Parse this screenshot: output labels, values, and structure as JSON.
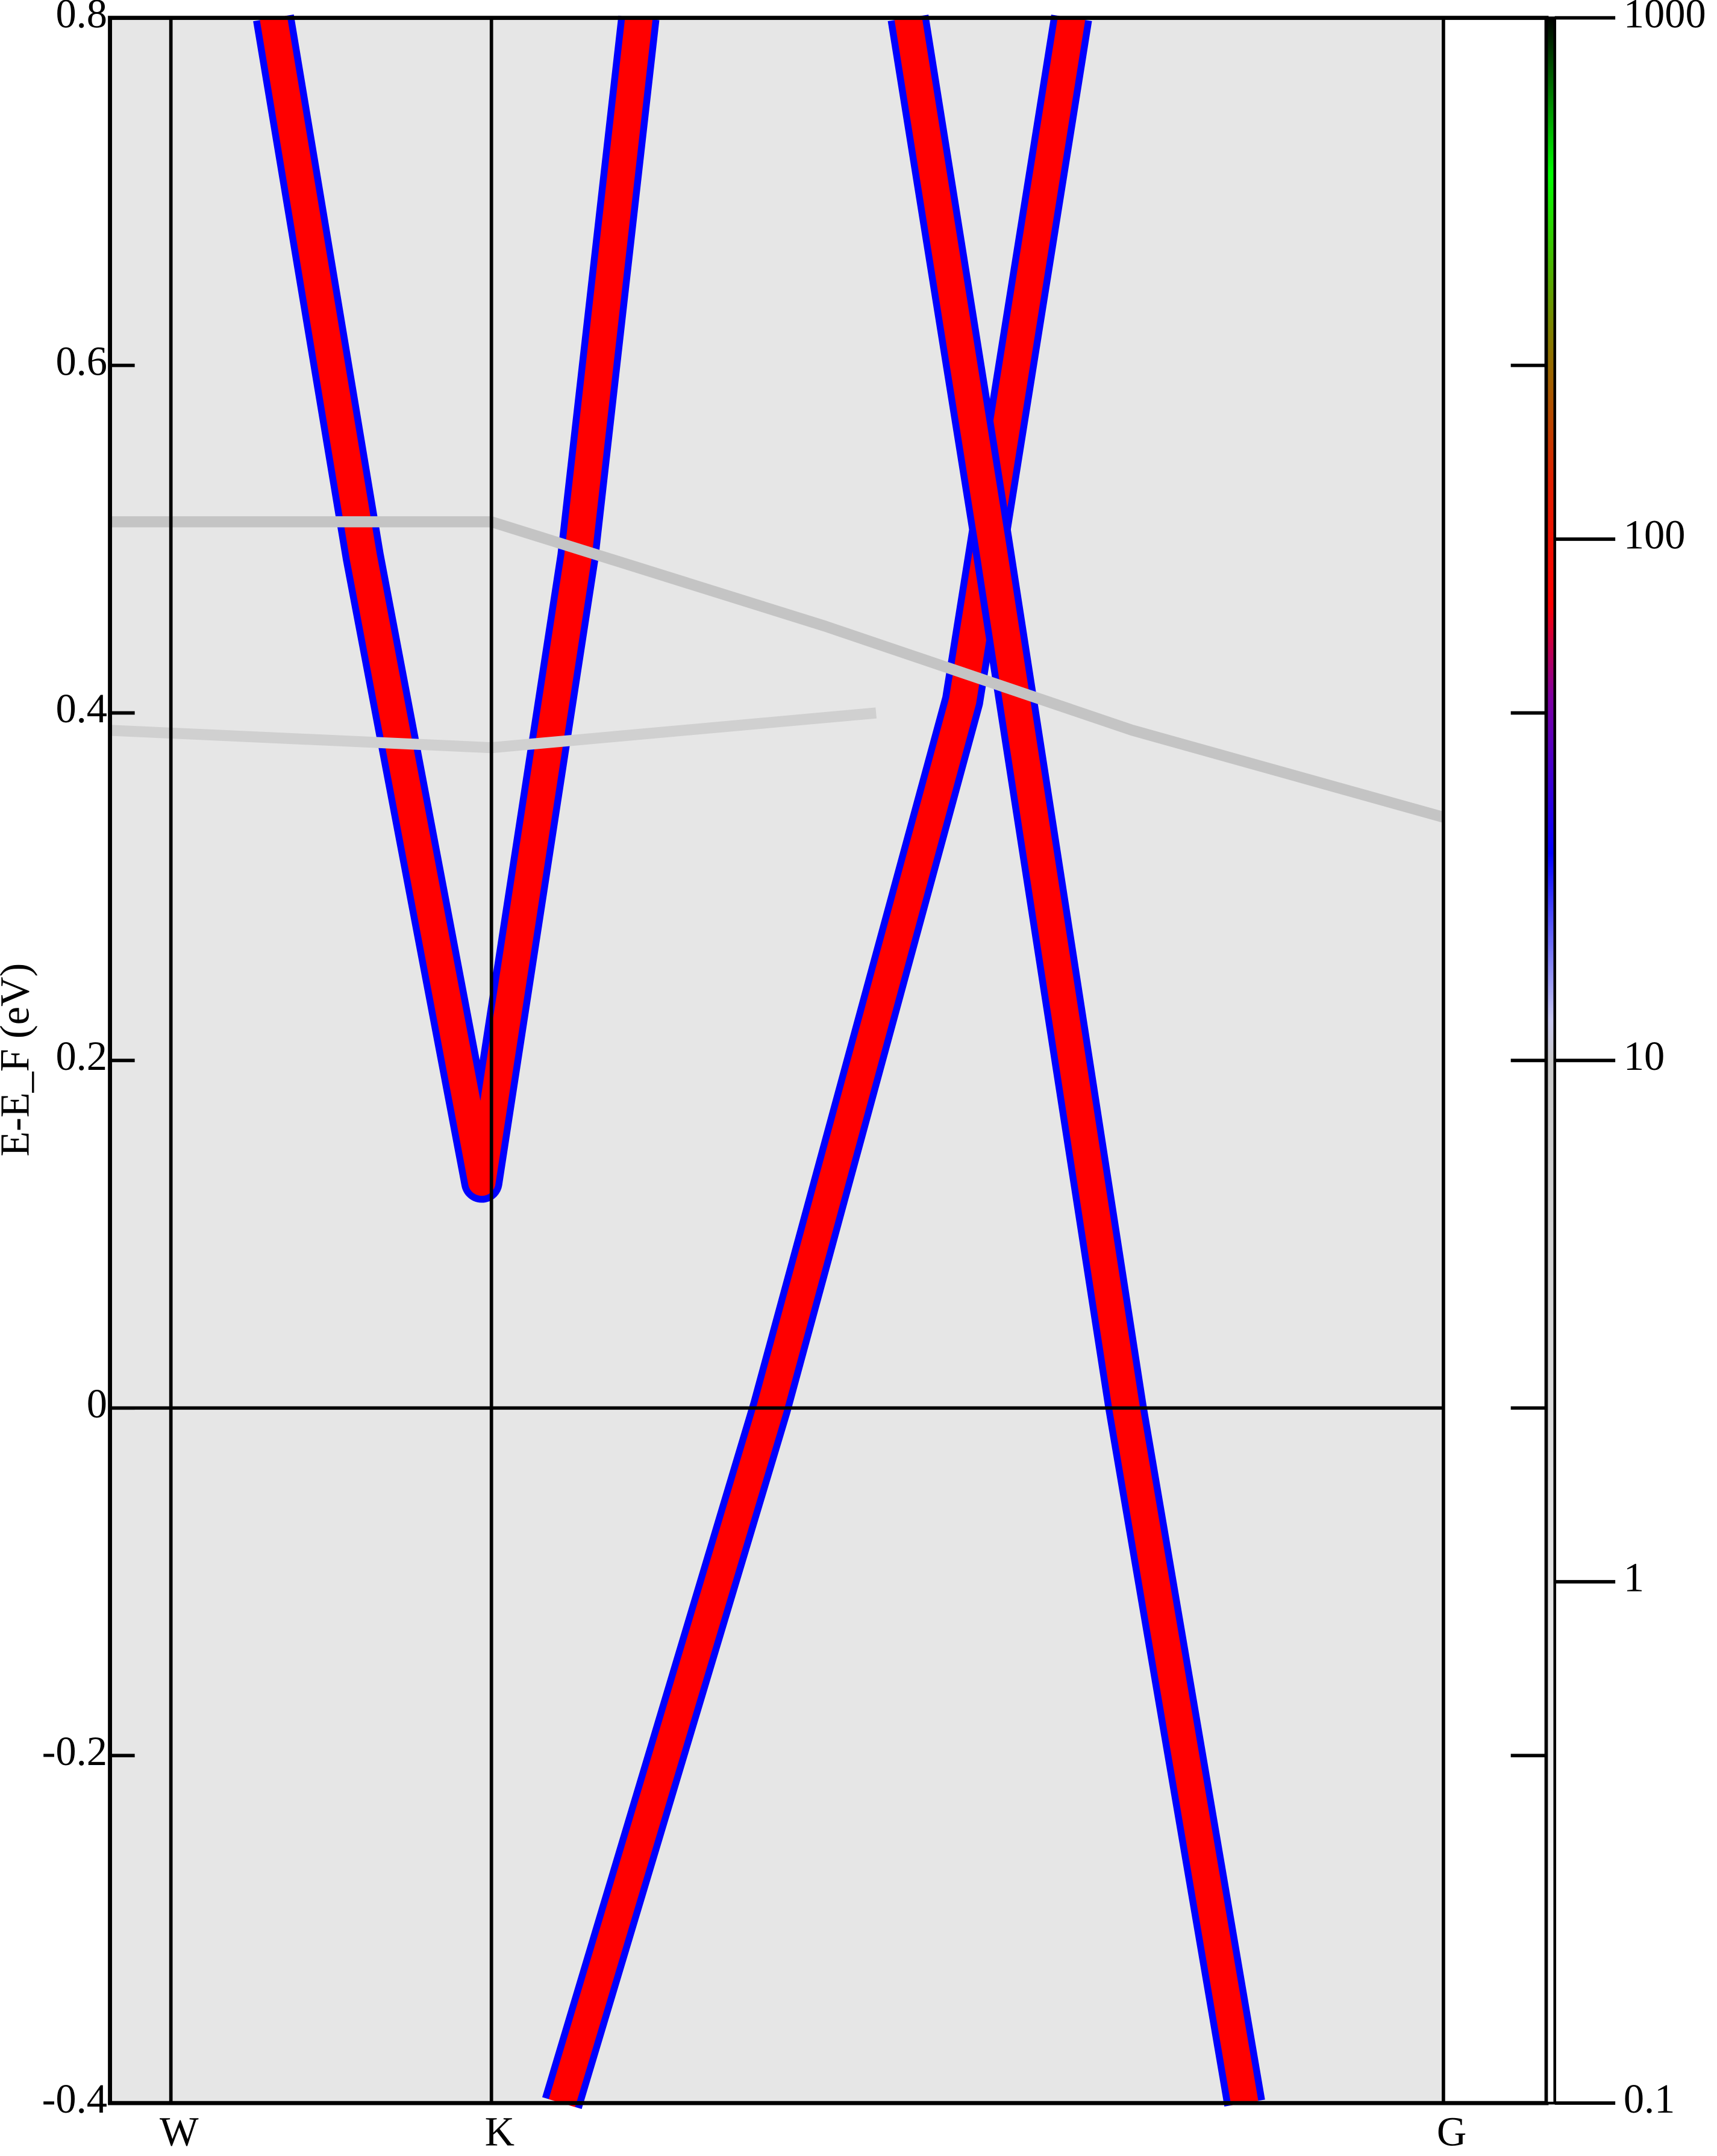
{
  "chart_data": {
    "type": "line",
    "ylabel": "E-E_F (eV)",
    "xlim": [
      -0.19,
      3.97
    ],
    "xticks": [
      {
        "value": 0,
        "label": "W"
      },
      {
        "value": 1,
        "label": "K"
      },
      {
        "value": 3.97,
        "label": "G"
      }
    ],
    "ylim": [
      -0.4,
      0.8
    ],
    "yticks": [
      -0.4,
      -0.2,
      0,
      0.2,
      0.4,
      0.6,
      0.8
    ],
    "zero_line": true,
    "background": "#e6e6e6",
    "series": [
      {
        "color": "#ff0000",
        "x": [
          0.32,
          0.6,
          0.97,
          1.27,
          1.46
        ],
        "values": [
          0.8,
          0.49,
          0.13,
          0.49,
          0.8
        ]
      },
      {
        "color": "#ff0000",
        "x": [
          1.22,
          1.87,
          2.47,
          2.81
        ],
        "values": [
          -0.4,
          0,
          0.407,
          0.8
        ]
      },
      {
        "color": "#ff0000",
        "x": [
          2.3,
          2.56,
          2.98,
          3.35
        ],
        "values": [
          0.8,
          0.5,
          0,
          -0.4
        ]
      },
      {
        "color": "#c4c4c4",
        "x": [
          -0.19,
          1.0,
          2.04,
          3.0,
          3.97
        ],
        "values": [
          0.51,
          0.51,
          0.45,
          0.39,
          0.34
        ]
      },
      {
        "color": "#d0d0d0",
        "x": [
          -0.19,
          1.0,
          2.2
        ],
        "values": [
          0.39,
          0.38,
          0.4
        ]
      }
    ],
    "colorbar": {
      "log": true,
      "lim": [
        0.1,
        1000
      ],
      "ticks": [
        0.1,
        1,
        10,
        100,
        1000
      ],
      "stops": [
        {
          "value": 0.1,
          "color": "#ffffff"
        },
        {
          "value": 10,
          "color": "#c8c8c8"
        },
        {
          "value": 12,
          "color": "#c8c8f0"
        },
        {
          "value": 25,
          "color": "#0000ff"
        },
        {
          "value": 50,
          "color": "#8000a0"
        },
        {
          "value": 75,
          "color": "#ff0000"
        },
        {
          "value": 130,
          "color": "#e02000"
        },
        {
          "value": 250,
          "color": "#808000"
        },
        {
          "value": 500,
          "color": "#00ff00"
        },
        {
          "value": 1000,
          "color": "#000000"
        }
      ]
    }
  }
}
